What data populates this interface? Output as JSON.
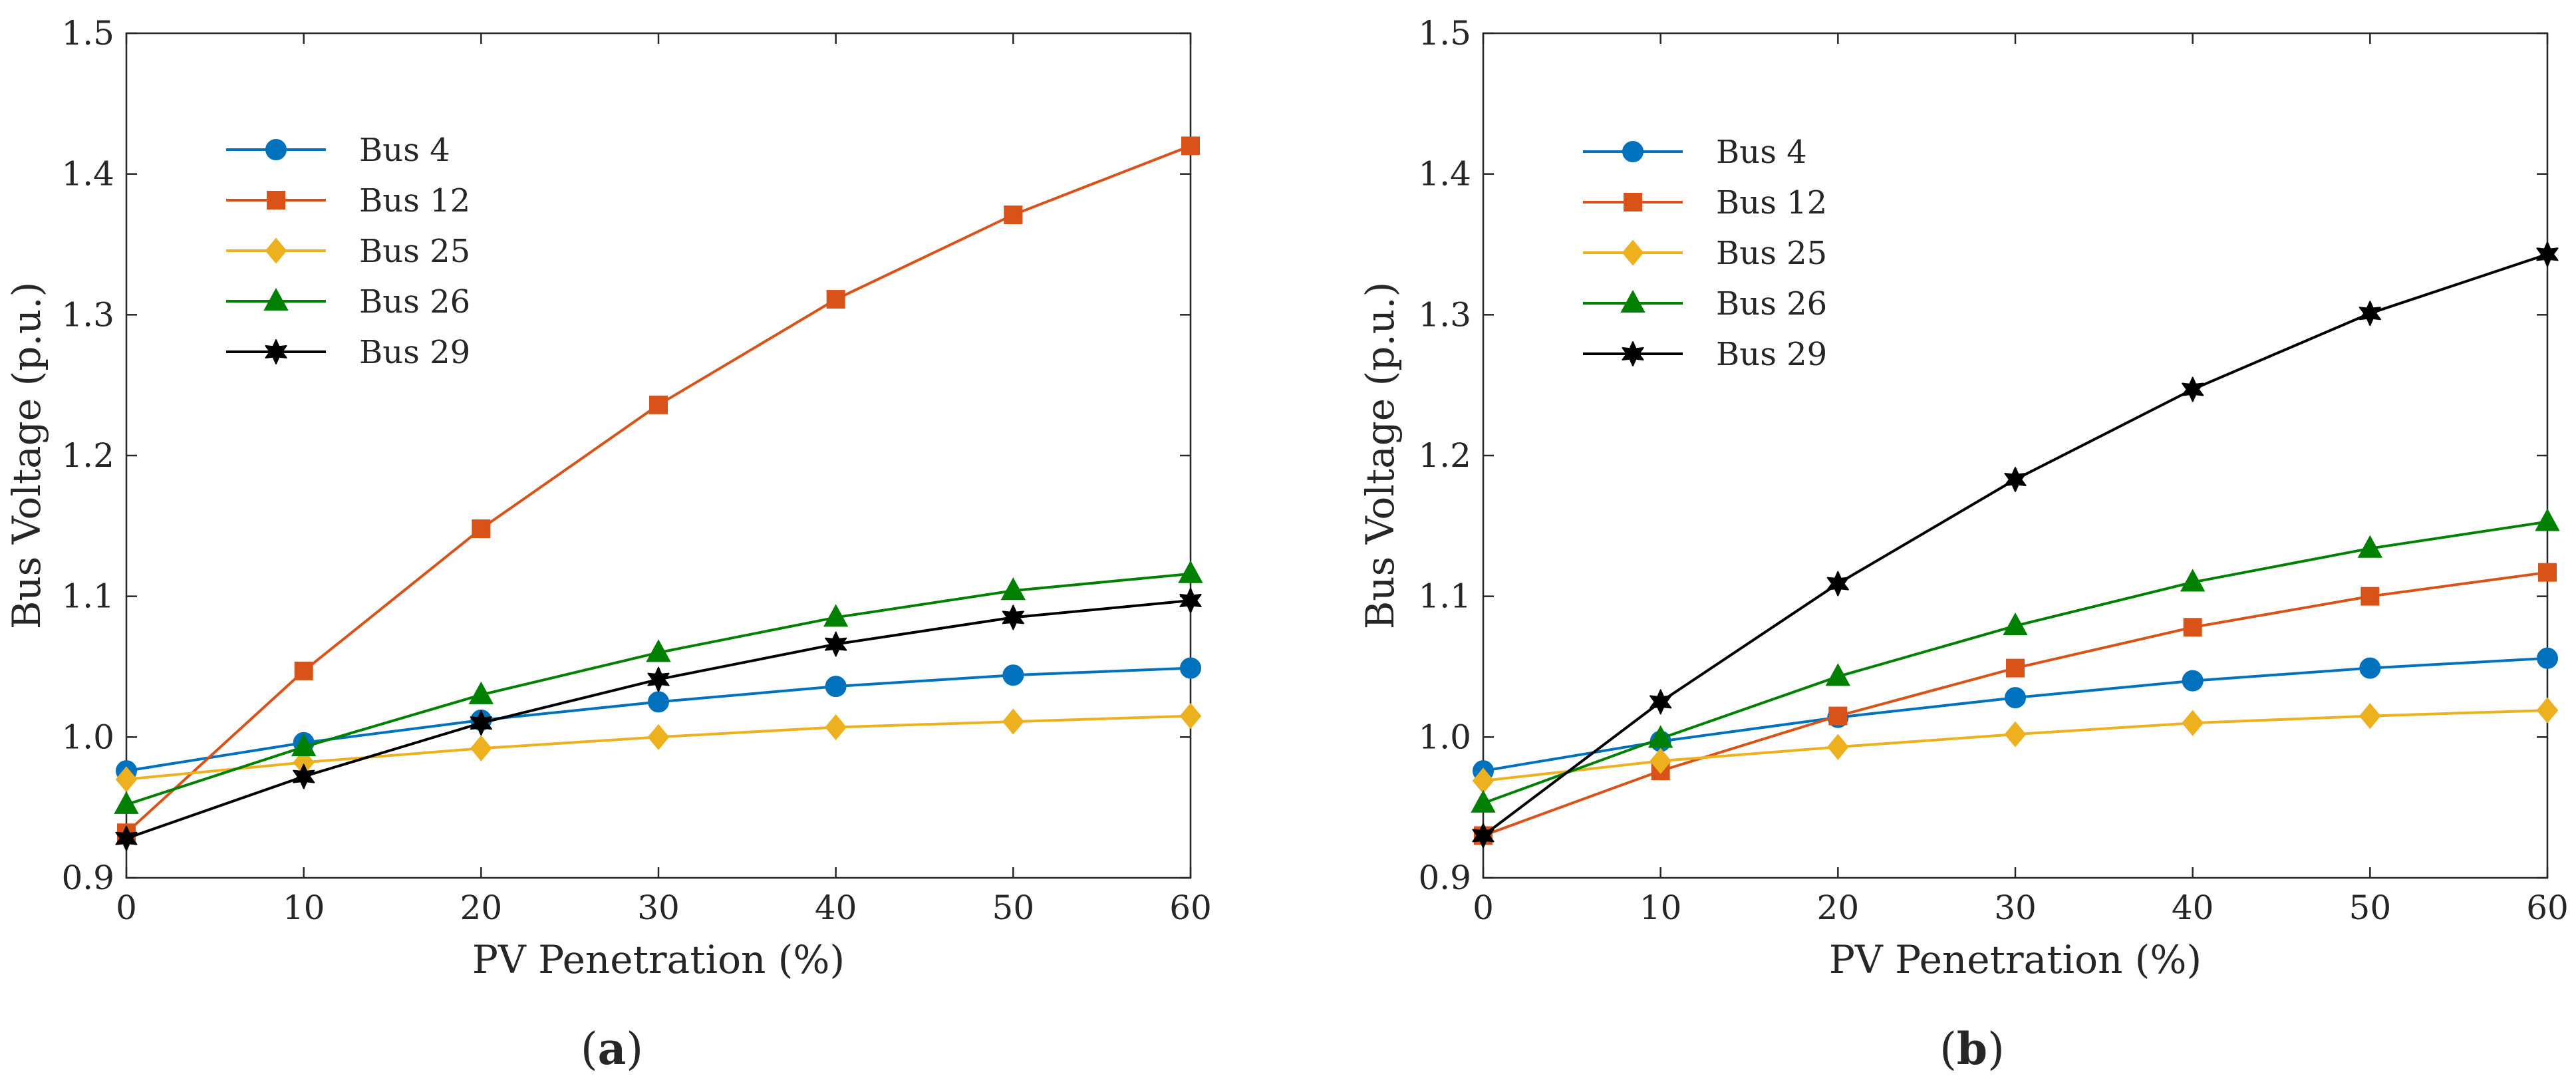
{
  "chart_data": [
    {
      "type": "line",
      "caption": {
        "open": "(",
        "letter": "a",
        "close": ")"
      },
      "xlabel": "PV Penetration (%)",
      "ylabel": "Bus Voltage (p.u.)",
      "x": [
        0,
        10,
        20,
        30,
        40,
        50,
        60
      ],
      "xlim": [
        0,
        60
      ],
      "ylim": [
        0.9,
        1.5
      ],
      "xticks": [
        "0",
        "10",
        "20",
        "30",
        "40",
        "50",
        "60"
      ],
      "yticks": [
        "0.9",
        "1.0",
        "1.1",
        "1.2",
        "1.3",
        "1.4",
        "1.5"
      ],
      "grid": false,
      "legend_position": "upper-left",
      "series": [
        {
          "name": "Bus 4",
          "color": "#0072BD",
          "marker": "circle",
          "values": [
            0.976,
            0.996,
            1.012,
            1.025,
            1.036,
            1.044,
            1.049
          ]
        },
        {
          "name": "Bus 12",
          "color": "#D95319",
          "marker": "square",
          "values": [
            0.932,
            1.047,
            1.148,
            1.236,
            1.311,
            1.371,
            1.42
          ]
        },
        {
          "name": "Bus 25",
          "color": "#EDB120",
          "marker": "diamond",
          "values": [
            0.97,
            0.982,
            0.992,
            1.0,
            1.007,
            1.011,
            1.015
          ]
        },
        {
          "name": "Bus 26",
          "color": "#008000",
          "marker": "triangle",
          "values": [
            0.952,
            0.993,
            1.03,
            1.06,
            1.085,
            1.104,
            1.116
          ]
        },
        {
          "name": "Bus 29",
          "color": "#000000",
          "marker": "hexagram",
          "values": [
            0.928,
            0.972,
            1.01,
            1.041,
            1.066,
            1.085,
            1.097
          ]
        }
      ]
    },
    {
      "type": "line",
      "caption": {
        "open": "(",
        "letter": "b",
        "close": ")"
      },
      "xlabel": "PV Penetration (%)",
      "ylabel": "Bus Voltage (p.u.)",
      "x": [
        0,
        10,
        20,
        30,
        40,
        50,
        60
      ],
      "xlim": [
        0,
        60
      ],
      "ylim": [
        0.9,
        1.5
      ],
      "xticks": [
        "0",
        "10",
        "20",
        "30",
        "40",
        "50",
        "60"
      ],
      "yticks": [
        "0.9",
        "1.0",
        "1.1",
        "1.2",
        "1.3",
        "1.4",
        "1.5"
      ],
      "grid": false,
      "legend_position": "upper-left",
      "series": [
        {
          "name": "Bus 4",
          "color": "#0072BD",
          "marker": "circle",
          "values": [
            0.976,
            0.997,
            1.014,
            1.028,
            1.04,
            1.049,
            1.056
          ]
        },
        {
          "name": "Bus 12",
          "color": "#D95319",
          "marker": "square",
          "values": [
            0.93,
            0.976,
            1.015,
            1.049,
            1.078,
            1.1,
            1.117
          ]
        },
        {
          "name": "Bus 25",
          "color": "#EDB120",
          "marker": "diamond",
          "values": [
            0.969,
            0.983,
            0.993,
            1.002,
            1.01,
            1.015,
            1.019
          ]
        },
        {
          "name": "Bus 26",
          "color": "#008000",
          "marker": "triangle",
          "values": [
            0.953,
            0.999,
            1.043,
            1.079,
            1.11,
            1.134,
            1.153
          ]
        },
        {
          "name": "Bus 29",
          "color": "#000000",
          "marker": "hexagram",
          "values": [
            0.93,
            1.025,
            1.109,
            1.183,
            1.247,
            1.301,
            1.343
          ]
        }
      ]
    }
  ]
}
